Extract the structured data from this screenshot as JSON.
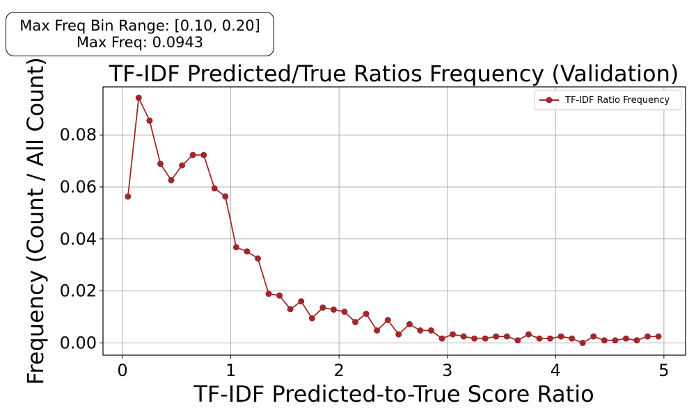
{
  "info_box": {
    "line1": "Max Freq Bin Range: [0.10, 0.20]",
    "line2": "Max Freq: 0.0943"
  },
  "chart_data": {
    "type": "line",
    "title": "TF-IDF Predicted/True Ratios Frequency (Validation)",
    "xlabel": "TF-IDF Predicted-to-True Score Ratio",
    "ylabel": "Frequency (Count / All Count)",
    "xlim": [
      -0.18,
      5.2
    ],
    "ylim": [
      -0.0047,
      0.0985
    ],
    "xticks": [
      0,
      1,
      2,
      3,
      4,
      5
    ],
    "xtick_labels": [
      "0",
      "1",
      "2",
      "3",
      "4",
      "5"
    ],
    "yticks": [
      0.0,
      0.02,
      0.04,
      0.06,
      0.08
    ],
    "ytick_labels": [
      "0.00",
      "0.02",
      "0.04",
      "0.06",
      "0.08"
    ],
    "grid": true,
    "legend": "top-right",
    "series": [
      {
        "name": "TF-IDF Ratio Frequency",
        "color": "#a0282a",
        "x": [
          0.05,
          0.15,
          0.25,
          0.35,
          0.45,
          0.55,
          0.65,
          0.75,
          0.85,
          0.95,
          1.05,
          1.15,
          1.25,
          1.35,
          1.45,
          1.55,
          1.65,
          1.75,
          1.85,
          1.95,
          2.05,
          2.15,
          2.25,
          2.35,
          2.45,
          2.55,
          2.65,
          2.75,
          2.85,
          2.95,
          3.05,
          3.15,
          3.25,
          3.35,
          3.45,
          3.55,
          3.65,
          3.75,
          3.85,
          3.95,
          4.05,
          4.15,
          4.25,
          4.35,
          4.45,
          4.55,
          4.65,
          4.75,
          4.85,
          4.95
        ],
        "y": [
          0.0563,
          0.0943,
          0.0855,
          0.0689,
          0.0626,
          0.0683,
          0.0723,
          0.0723,
          0.0595,
          0.0563,
          0.0368,
          0.0352,
          0.0325,
          0.0189,
          0.0182,
          0.013,
          0.016,
          0.0095,
          0.0136,
          0.0128,
          0.012,
          0.008,
          0.0112,
          0.0048,
          0.0088,
          0.0033,
          0.0072,
          0.0048,
          0.0048,
          0.0017,
          0.0033,
          0.0025,
          0.0017,
          0.0017,
          0.0025,
          0.0025,
          0.001,
          0.0033,
          0.0017,
          0.0017,
          0.0025,
          0.0017,
          0.0,
          0.0025,
          0.001,
          0.001,
          0.0017,
          0.001,
          0.0025,
          0.0025
        ]
      }
    ]
  }
}
